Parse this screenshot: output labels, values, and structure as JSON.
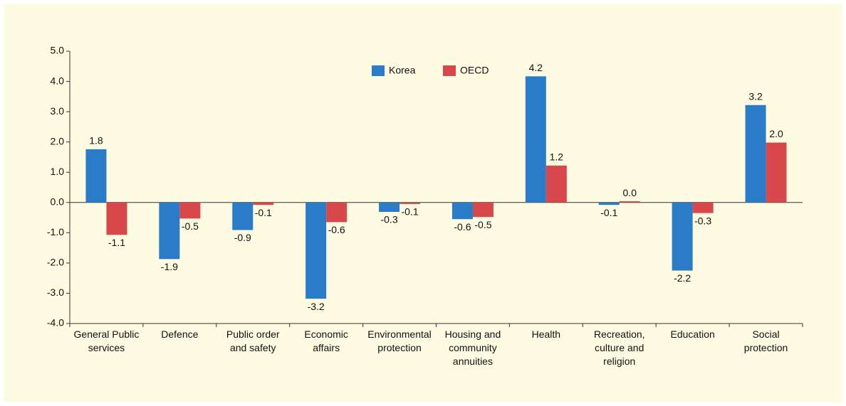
{
  "chart_data": {
    "type": "bar",
    "categories": [
      [
        "General Public",
        "services"
      ],
      [
        "Defence"
      ],
      [
        "Public order",
        "and safety"
      ],
      [
        "Economic",
        "affairs"
      ],
      [
        "Environmental",
        "protection"
      ],
      [
        "Housing and",
        "community",
        "annuities"
      ],
      [
        "Health"
      ],
      [
        "Recreation,",
        "culture and",
        "religion"
      ],
      [
        "Education"
      ],
      [
        "Social",
        "protection"
      ]
    ],
    "series": [
      {
        "name": "Korea",
        "color": "#2a7bc8",
        "values": [
          1.76,
          -1.87,
          -0.91,
          -3.18,
          -0.31,
          -0.55,
          4.17,
          -0.08,
          -2.25,
          3.22
        ],
        "value_labels": [
          "1.8",
          "-1.9",
          "-0.9",
          "-3.2",
          "-0.3",
          "-0.6",
          "4.2",
          "-0.1",
          "-2.2",
          "3.2"
        ]
      },
      {
        "name": "OECD",
        "color": "#d8474b",
        "values": [
          -1.07,
          -0.53,
          -0.08,
          -0.65,
          -0.05,
          -0.48,
          1.22,
          0.04,
          -0.35,
          1.98
        ],
        "value_labels": [
          "-1.1",
          "-0.5",
          "-0.1",
          "-0.6",
          "-0.1",
          "-0.5",
          "1.2",
          "0.0",
          "-0.3",
          "2.0"
        ]
      }
    ],
    "ylim": [
      -4,
      5
    ],
    "yticks": [
      {
        "value": -4,
        "label": "-4.0"
      },
      {
        "value": -3,
        "label": "-3.0"
      },
      {
        "value": -2,
        "label": "-2.0"
      },
      {
        "value": -1,
        "label": "-1.0"
      },
      {
        "value": 0,
        "label": "0.0"
      },
      {
        "value": 1,
        "label": "1.0"
      },
      {
        "value": 2,
        "label": "2.0"
      },
      {
        "value": 3,
        "label": "3.0"
      },
      {
        "value": 4,
        "label": "4.0"
      },
      {
        "value": 5,
        "label": "5.0"
      }
    ],
    "legend": "top"
  }
}
